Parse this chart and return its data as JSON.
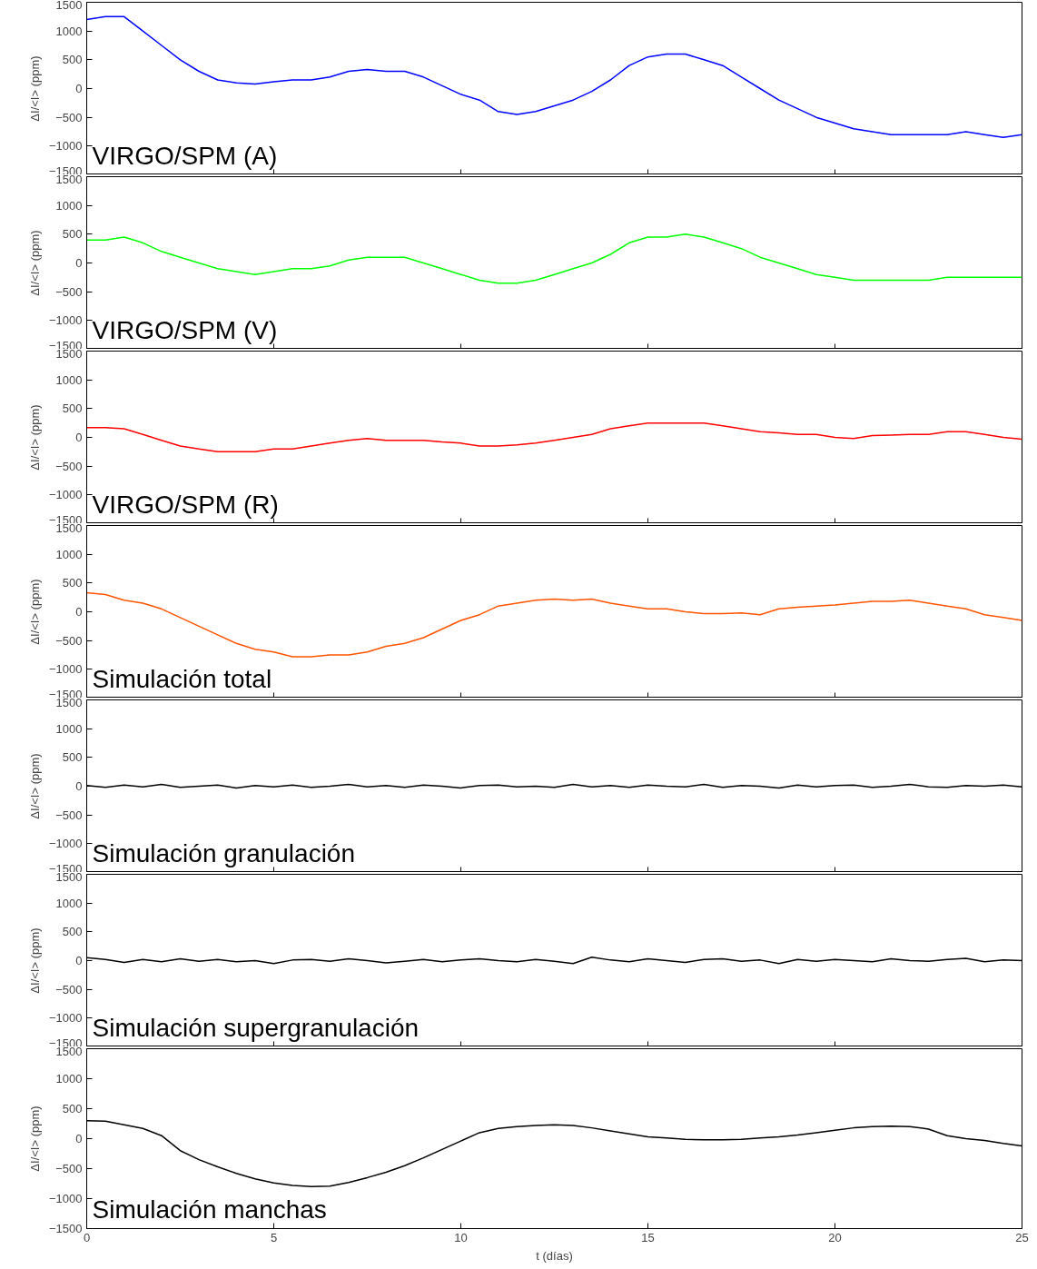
{
  "chart_data": [
    {
      "type": "line",
      "ylabel": "ΔI/<I> (ppm)",
      "annotations": [
        "VIRGO/SPM (A)"
      ],
      "color": "#0000ff",
      "xlim": [
        0,
        25
      ],
      "xticks": [
        0,
        5,
        10,
        15,
        20,
        25
      ],
      "ylim": [
        -1500,
        1500
      ],
      "yticks": [
        -1500,
        -1000,
        -500,
        0,
        500,
        1000,
        1500
      ],
      "tick_labels": "y",
      "x": [
        0,
        0.5,
        1,
        1.5,
        2,
        2.5,
        3,
        3.5,
        4,
        4.5,
        5,
        5.5,
        6,
        6.5,
        7,
        7.5,
        8,
        8.5,
        9,
        9.5,
        10,
        10.5,
        11,
        11.5,
        12,
        12.5,
        13,
        13.5,
        14,
        14.5,
        15,
        15.5,
        16,
        16.5,
        17,
        17.5,
        18,
        18.5,
        19,
        19.5,
        20,
        20.5,
        21,
        21.5,
        22,
        22.5,
        23,
        23.5,
        24,
        24.5,
        25
      ],
      "values": [
        1200,
        1250,
        1250,
        1000,
        750,
        500,
        300,
        150,
        100,
        80,
        120,
        150,
        150,
        200,
        300,
        330,
        300,
        300,
        200,
        50,
        -100,
        -200,
        -400,
        -450,
        -400,
        -300,
        -200,
        -50,
        150,
        400,
        550,
        600,
        600,
        500,
        400,
        200,
        0,
        -200,
        -350,
        -500,
        -600,
        -700,
        -750,
        -800,
        -800,
        -800,
        -800,
        -750,
        -800,
        -850,
        -800
      ]
    },
    {
      "type": "line",
      "ylabel": "ΔI/<I> (ppm)",
      "annotations": [
        "VIRGO/SPM (V)"
      ],
      "color": "#00ff00",
      "xlim": [
        0,
        25
      ],
      "xticks": [
        0,
        5,
        10,
        15,
        20,
        25
      ],
      "ylim": [
        -1500,
        1500
      ],
      "yticks": [
        -1500,
        -1000,
        -500,
        0,
        500,
        1000,
        1500
      ],
      "tick_labels": "y",
      "x": [
        0,
        0.5,
        1,
        1.5,
        2,
        2.5,
        3,
        3.5,
        4,
        4.5,
        5,
        5.5,
        6,
        6.5,
        7,
        7.5,
        8,
        8.5,
        9,
        9.5,
        10,
        10.5,
        11,
        11.5,
        12,
        12.5,
        13,
        13.5,
        14,
        14.5,
        15,
        15.5,
        16,
        16.5,
        17,
        17.5,
        18,
        18.5,
        19,
        19.5,
        20,
        20.5,
        21,
        21.5,
        22,
        22.5,
        23,
        23.5,
        24,
        24.5,
        25
      ],
      "values": [
        400,
        400,
        450,
        350,
        200,
        100,
        0,
        -100,
        -150,
        -200,
        -150,
        -100,
        -100,
        -50,
        50,
        100,
        100,
        100,
        0,
        -100,
        -200,
        -300,
        -350,
        -350,
        -300,
        -200,
        -100,
        0,
        150,
        350,
        450,
        450,
        500,
        450,
        350,
        250,
        100,
        0,
        -100,
        -200,
        -250,
        -300,
        -300,
        -300,
        -300,
        -300,
        -250,
        -250,
        -250,
        -250,
        -250
      ]
    },
    {
      "type": "line",
      "ylabel": "ΔI/<I> (ppm)",
      "annotations": [
        "VIRGO/SPM (R)"
      ],
      "color": "#ff0000",
      "xlim": [
        0,
        25
      ],
      "xticks": [
        0,
        5,
        10,
        15,
        20,
        25
      ],
      "ylim": [
        -1500,
        1500
      ],
      "yticks": [
        -1500,
        -1000,
        -500,
        0,
        500,
        1000,
        1500
      ],
      "tick_labels": "y",
      "x": [
        0,
        0.5,
        1,
        1.5,
        2,
        2.5,
        3,
        3.5,
        4,
        4.5,
        5,
        5.5,
        6,
        6.5,
        7,
        7.5,
        8,
        8.5,
        9,
        9.5,
        10,
        10.5,
        11,
        11.5,
        12,
        12.5,
        13,
        13.5,
        14,
        14.5,
        15,
        15.5,
        16,
        16.5,
        17,
        17.5,
        18,
        18.5,
        19,
        19.5,
        20,
        20.5,
        21,
        21.5,
        22,
        22.5,
        23,
        23.5,
        24,
        24.5,
        25
      ],
      "values": [
        170,
        170,
        150,
        50,
        -50,
        -150,
        -200,
        -250,
        -250,
        -250,
        -200,
        -200,
        -150,
        -100,
        -50,
        -20,
        -50,
        -50,
        -50,
        -80,
        -100,
        -150,
        -150,
        -130,
        -100,
        -50,
        0,
        50,
        150,
        200,
        250,
        250,
        250,
        250,
        200,
        150,
        100,
        80,
        50,
        50,
        0,
        -20,
        30,
        40,
        50,
        50,
        100,
        100,
        50,
        0,
        -30
      ]
    },
    {
      "type": "line",
      "ylabel": "ΔI/<I> (ppm)",
      "annotations": [
        "Simulación total"
      ],
      "color": "#ff5500",
      "xlim": [
        0,
        25
      ],
      "xticks": [
        0,
        5,
        10,
        15,
        20,
        25
      ],
      "ylim": [
        -1500,
        1500
      ],
      "yticks": [
        -1500,
        -1000,
        -500,
        0,
        500,
        1000,
        1500
      ],
      "tick_labels": "y",
      "x": [
        0,
        0.5,
        1,
        1.5,
        2,
        2.5,
        3,
        3.5,
        4,
        4.5,
        5,
        5.5,
        6,
        6.5,
        7,
        7.5,
        8,
        8.5,
        9,
        9.5,
        10,
        10.5,
        11,
        11.5,
        12,
        12.5,
        13,
        13.5,
        14,
        14.5,
        15,
        15.5,
        16,
        16.5,
        17,
        17.5,
        18,
        18.5,
        19,
        19.5,
        20,
        20.5,
        21,
        21.5,
        22,
        22.5,
        23,
        23.5,
        24,
        24.5,
        25
      ],
      "values": [
        330,
        300,
        200,
        150,
        50,
        -100,
        -250,
        -400,
        -550,
        -650,
        -700,
        -780,
        -780,
        -750,
        -750,
        -700,
        -600,
        -550,
        -450,
        -300,
        -150,
        -50,
        100,
        150,
        200,
        220,
        200,
        220,
        150,
        100,
        50,
        50,
        0,
        -30,
        -30,
        -20,
        -50,
        50,
        80,
        100,
        120,
        150,
        180,
        180,
        200,
        150,
        100,
        50,
        -50,
        -100,
        -150
      ]
    },
    {
      "type": "line",
      "ylabel": "ΔI/<I> (ppm)",
      "annotations": [
        "Simulación granulación"
      ],
      "color": "#000000",
      "xlim": [
        0,
        25
      ],
      "xticks": [
        0,
        5,
        10,
        15,
        20,
        25
      ],
      "ylim": [
        -1500,
        1500
      ],
      "yticks": [
        -1500,
        -1000,
        -500,
        0,
        500,
        1000,
        1500
      ],
      "tick_labels": "y",
      "x": [
        0,
        0.5,
        1,
        1.5,
        2,
        2.5,
        3,
        3.5,
        4,
        4.5,
        5,
        5.5,
        6,
        6.5,
        7,
        7.5,
        8,
        8.5,
        9,
        9.5,
        10,
        10.5,
        11,
        11.5,
        12,
        12.5,
        13,
        13.5,
        14,
        14.5,
        15,
        15.5,
        16,
        16.5,
        17,
        17.5,
        18,
        18.5,
        19,
        19.5,
        20,
        20.5,
        21,
        21.5,
        22,
        22.5,
        23,
        23.5,
        24,
        24.5,
        25
      ],
      "values": [
        10,
        -20,
        20,
        -10,
        30,
        -20,
        0,
        20,
        -30,
        10,
        -10,
        20,
        -20,
        0,
        30,
        -10,
        10,
        -20,
        20,
        0,
        -30,
        10,
        20,
        -10,
        0,
        -20,
        30,
        -10,
        10,
        -20,
        20,
        0,
        -10,
        30,
        -20,
        10,
        0,
        -30,
        20,
        -10,
        10,
        20,
        -20,
        0,
        30,
        -10,
        -20,
        10,
        0,
        20,
        -10
      ]
    },
    {
      "type": "line",
      "ylabel": "ΔI/<I> (ppm)",
      "annotations": [
        "Simulación supergranulación"
      ],
      "color": "#000000",
      "xlim": [
        0,
        25
      ],
      "xticks": [
        0,
        5,
        10,
        15,
        20,
        25
      ],
      "ylim": [
        -1500,
        1500
      ],
      "yticks": [
        -1500,
        -1000,
        -500,
        0,
        500,
        1000,
        1500
      ],
      "tick_labels": "y",
      "x": [
        0,
        0.5,
        1,
        1.5,
        2,
        2.5,
        3,
        3.5,
        4,
        4.5,
        5,
        5.5,
        6,
        6.5,
        7,
        7.5,
        8,
        8.5,
        9,
        9.5,
        10,
        10.5,
        11,
        11.5,
        12,
        12.5,
        13,
        13.5,
        14,
        14.5,
        15,
        15.5,
        16,
        16.5,
        17,
        17.5,
        18,
        18.5,
        19,
        19.5,
        20,
        20.5,
        21,
        21.5,
        22,
        22.5,
        23,
        23.5,
        24,
        24.5,
        25
      ],
      "values": [
        50,
        20,
        -30,
        20,
        -20,
        30,
        -10,
        20,
        -20,
        0,
        -50,
        10,
        20,
        -10,
        30,
        0,
        -40,
        -10,
        20,
        -20,
        10,
        30,
        0,
        -20,
        20,
        -10,
        -50,
        60,
        10,
        -20,
        30,
        0,
        -30,
        20,
        30,
        -10,
        10,
        -50,
        20,
        -10,
        20,
        0,
        -20,
        30,
        0,
        -10,
        20,
        40,
        -20,
        10,
        0
      ]
    },
    {
      "type": "line",
      "ylabel": "ΔI/<I> (ppm)",
      "xlabel": "t (días)",
      "annotations": [
        "Simulación manchas"
      ],
      "color": "#000000",
      "xlim": [
        0,
        25
      ],
      "xticks": [
        0,
        5,
        10,
        15,
        20,
        25
      ],
      "ylim": [
        -1500,
        1500
      ],
      "yticks": [
        -1500,
        -1000,
        -500,
        0,
        500,
        1000,
        1500
      ],
      "x": [
        0,
        0.5,
        1,
        1.5,
        2,
        2.5,
        3,
        3.5,
        4,
        4.5,
        5,
        5.5,
        6,
        6.5,
        7,
        7.5,
        8,
        8.5,
        9,
        9.5,
        10,
        10.5,
        11,
        11.5,
        12,
        12.5,
        13,
        13.5,
        14,
        14.5,
        15,
        15.5,
        16,
        16.5,
        17,
        17.5,
        18,
        18.5,
        19,
        19.5,
        20,
        20.5,
        21,
        21.5,
        22,
        22.5,
        23,
        23.5,
        24,
        24.5,
        25
      ],
      "values": [
        300,
        290,
        230,
        170,
        50,
        -200,
        -350,
        -470,
        -580,
        -670,
        -740,
        -780,
        -800,
        -790,
        -730,
        -650,
        -560,
        -450,
        -320,
        -180,
        -40,
        100,
        170,
        200,
        220,
        230,
        220,
        180,
        130,
        80,
        30,
        10,
        -10,
        -20,
        -20,
        -10,
        10,
        30,
        60,
        100,
        140,
        180,
        200,
        210,
        200,
        160,
        50,
        0,
        -30,
        -80,
        -120
      ]
    }
  ]
}
